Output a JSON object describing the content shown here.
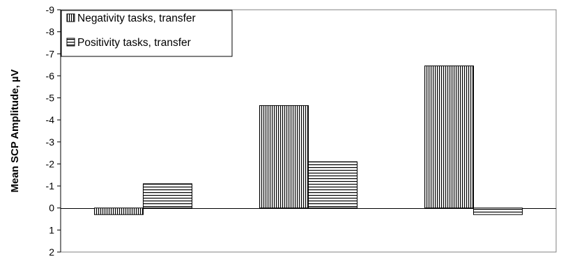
{
  "chart_data": {
    "type": "bar",
    "title": "",
    "xlabel": "",
    "ylabel": "Mean SCP Amplitude, µV",
    "y_axis_inverted": true,
    "ylim": [
      2,
      -9
    ],
    "yticks": [
      2,
      1,
      0,
      -1,
      -2,
      -3,
      -4,
      -5,
      -6,
      -7,
      -8,
      -9
    ],
    "ytick_labels": [
      "2",
      "1",
      "0",
      "-1",
      "-2",
      "-3",
      "-4",
      "-5",
      "-6",
      "-7",
      "-8",
      "-9"
    ],
    "categories": [
      "",
      "",
      ""
    ],
    "series": [
      {
        "name": "Negativity tasks, transfer",
        "pattern": "vertical-stripes",
        "values": [
          0.3,
          -4.65,
          -6.45
        ]
      },
      {
        "name": "Positivity tasks, transfer",
        "pattern": "horizontal-stripes",
        "values": [
          -1.1,
          -2.1,
          0.3
        ]
      }
    ],
    "grid": false,
    "legend_position": "top-left",
    "colors": {
      "bar_fill": "#ffffff",
      "stripe": "#000000",
      "frame": "#808080",
      "axis": "#000000"
    }
  }
}
